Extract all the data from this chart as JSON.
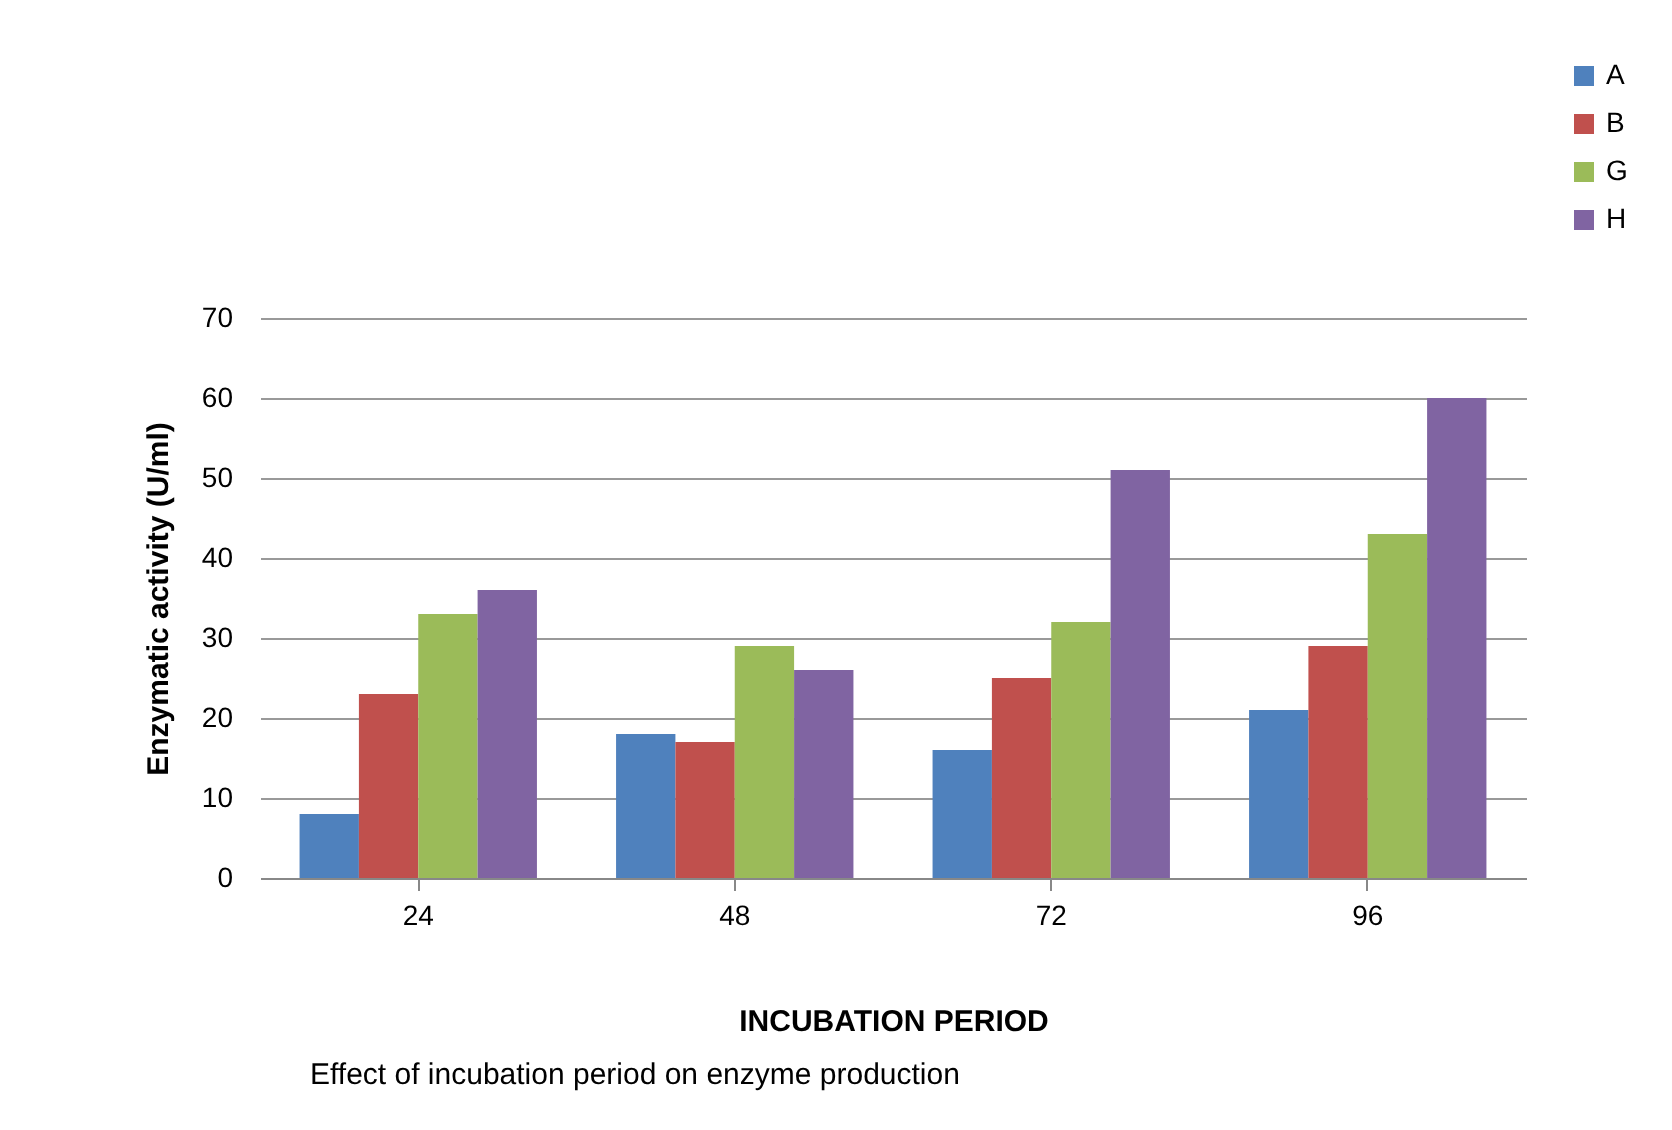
{
  "chart_data": {
    "type": "bar",
    "xlabel": "INCUBATION PERIOD",
    "ylabel": "Enzymatic  activity (U/ml)",
    "annotations": [
      "Effect of incubation period on enzyme production"
    ],
    "categories": [
      "24",
      "48",
      "72",
      "96"
    ],
    "series": [
      {
        "name": "A",
        "color": "#4f81bd",
        "values": [
          8,
          18,
          16,
          21
        ]
      },
      {
        "name": "B",
        "color": "#c0504d",
        "values": [
          23,
          17,
          25,
          29
        ]
      },
      {
        "name": "G",
        "color": "#9bbb59",
        "values": [
          33,
          29,
          32,
          43
        ]
      },
      {
        "name": "H",
        "color": "#8064a2",
        "values": [
          36,
          26,
          51,
          60
        ]
      }
    ],
    "ylim": [
      0,
      70
    ],
    "yticks": [
      0,
      10,
      20,
      30,
      40,
      50,
      60,
      70
    ],
    "grid": "y",
    "legend": "top right"
  }
}
